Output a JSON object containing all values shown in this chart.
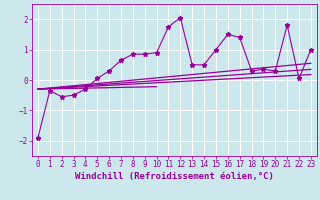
{
  "xlabel": "Windchill (Refroidissement éolien,°C)",
  "ylabel": "",
  "bg_color": "#cce8ec",
  "line_color": "#990099",
  "grid_color": "#ffffff",
  "xlim": [
    -0.5,
    23.5
  ],
  "ylim": [
    -2.5,
    2.5
  ],
  "xticks": [
    0,
    1,
    2,
    3,
    4,
    5,
    6,
    7,
    8,
    9,
    10,
    11,
    12,
    13,
    14,
    15,
    16,
    17,
    18,
    19,
    20,
    21,
    22,
    23
  ],
  "yticks": [
    -2,
    -1,
    0,
    1,
    2
  ],
  "scatter_x": [
    0,
    1,
    2,
    3,
    4,
    5,
    6,
    7,
    8,
    9,
    10,
    11,
    12,
    13,
    14,
    15,
    16,
    17,
    18,
    19,
    20,
    21,
    22,
    23
  ],
  "scatter_y": [
    -1.9,
    -0.35,
    -0.55,
    -0.5,
    -0.3,
    0.05,
    0.3,
    0.65,
    0.85,
    0.85,
    0.9,
    1.75,
    2.05,
    0.5,
    0.5,
    1.0,
    1.5,
    1.4,
    0.3,
    0.35,
    0.3,
    1.8,
    0.05,
    1.0
  ],
  "trend_lines": [
    {
      "x": [
        0,
        23
      ],
      "y": [
        -0.3,
        0.55
      ]
    },
    {
      "x": [
        0,
        23
      ],
      "y": [
        -0.3,
        0.35
      ]
    },
    {
      "x": [
        0,
        23
      ],
      "y": [
        -0.3,
        0.18
      ]
    },
    {
      "x": [
        0,
        10
      ],
      "y": [
        -0.3,
        -0.22
      ]
    }
  ],
  "xlabel_fontsize": 6.5,
  "tick_fontsize": 5.5
}
